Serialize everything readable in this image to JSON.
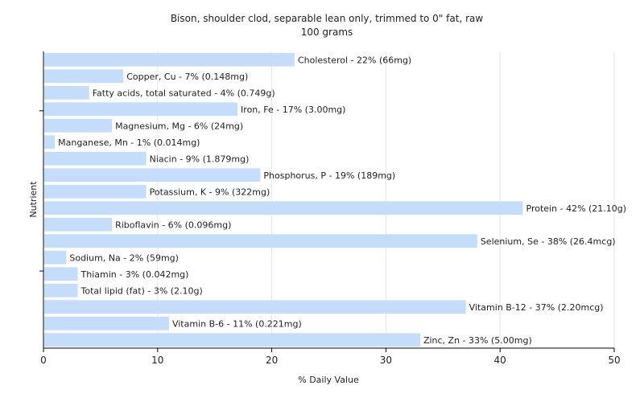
{
  "chart_data": {
    "type": "bar",
    "orientation": "horizontal",
    "title": "Bison, shoulder clod, separable lean only, trimmed to 0\" fat, raw",
    "subtitle": "100 grams",
    "xlabel": "% Daily Value",
    "ylabel": "Nutrient",
    "xlim": [
      0,
      50
    ],
    "xticks": [
      0,
      10,
      20,
      30,
      40,
      50
    ],
    "grid": "vertical",
    "bar_color": "#c5dcfa",
    "categories": [
      "Cholesterol",
      "Copper, Cu",
      "Fatty acids, total saturated",
      "Iron, Fe",
      "Magnesium, Mg",
      "Manganese, Mn",
      "Niacin",
      "Phosphorus, P",
      "Potassium, K",
      "Protein",
      "Riboflavin",
      "Selenium, Se",
      "Sodium, Na",
      "Thiamin",
      "Total lipid (fat)",
      "Vitamin B-12",
      "Vitamin B-6",
      "Zinc, Zn"
    ],
    "values": [
      22,
      7,
      4,
      17,
      6,
      1,
      9,
      19,
      9,
      42,
      6,
      38,
      2,
      3,
      3,
      37,
      11,
      33
    ],
    "labels": [
      "Cholesterol - 22% (66mg)",
      "Copper, Cu - 7% (0.148mg)",
      "Fatty acids, total saturated - 4% (0.749g)",
      "Iron, Fe - 17% (3.00mg)",
      "Magnesium, Mg - 6% (24mg)",
      "Manganese, Mn - 1% (0.014mg)",
      "Niacin - 9% (1.879mg)",
      "Phosphorus, P - 19% (189mg)",
      "Potassium, K - 9% (322mg)",
      "Protein - 42% (21.10g)",
      "Riboflavin - 6% (0.096mg)",
      "Selenium, Se - 38% (26.4mcg)",
      "Sodium, Na - 2% (59mg)",
      "Thiamin - 3% (0.042mg)",
      "Total lipid (fat) - 3% (2.10g)",
      "Vitamin B-12 - 37% (2.20mcg)",
      "Vitamin B-6 - 11% (0.221mg)",
      "Zinc, Zn - 33% (5.00mg)"
    ]
  }
}
